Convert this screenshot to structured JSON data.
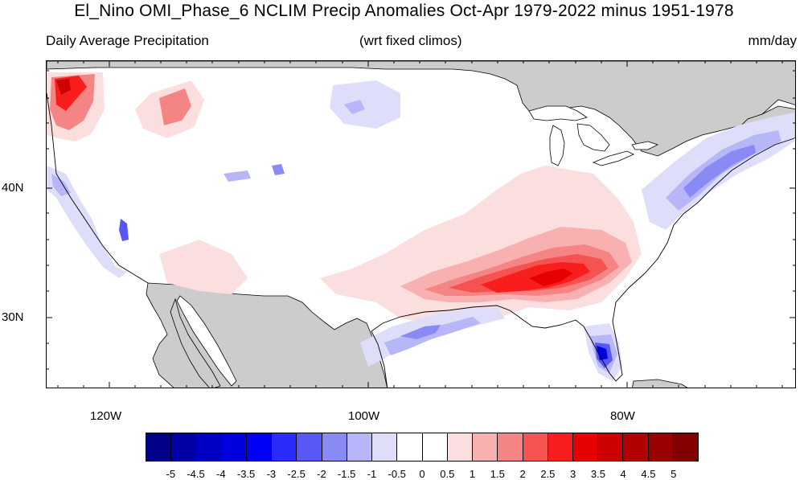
{
  "title": "El_Nino OMI_Phase_6 NCLIM Precip Anomalies Oct-Apr 1979-2022 minus 1951-1978",
  "subtitle_left": "Daily Average Precipitation",
  "subtitle_center": "(wrt fixed climos)",
  "subtitle_right": "mm/day",
  "lat_labels": [
    "40N",
    "30N"
  ],
  "lon_labels": [
    "120W",
    "100W",
    "80W"
  ],
  "colorbar": {
    "labels": [
      "-5",
      "-4.5",
      "-4",
      "-3.5",
      "-3",
      "-2.5",
      "-2",
      "-1.5",
      "-1",
      "-0.5",
      "0",
      "0.5",
      "1",
      "1.5",
      "2",
      "2.5",
      "3",
      "3.5",
      "4",
      "4.5",
      "5"
    ],
    "colors": [
      "#00008b",
      "#0000a6",
      "#0000c4",
      "#0000de",
      "#0000f8",
      "#2b2bfb",
      "#5858f7",
      "#8a8af5",
      "#b6b6f8",
      "#dedefb",
      "#ffffff",
      "#ffffff",
      "#fbdede",
      "#f8b0b0",
      "#f58484",
      "#f55252",
      "#f81e1e",
      "#e60000",
      "#cc0000",
      "#b20000",
      "#990000",
      "#820000"
    ]
  },
  "colors": {
    "land_outside": "#cccccc",
    "ocean": "#ffffff",
    "coastline": "#000000"
  }
}
